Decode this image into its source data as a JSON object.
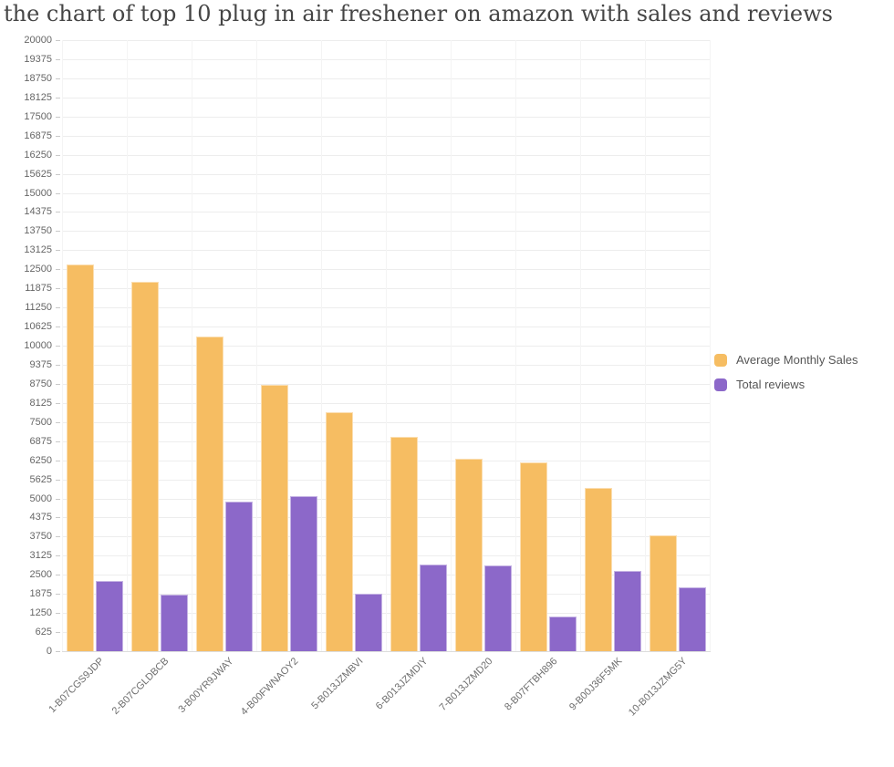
{
  "title": "the chart of top 10 plug in air freshener on amazon with sales and reviews",
  "chart_data": {
    "type": "bar",
    "title": "the chart of top 10 plug in air freshener on amazon with sales and reviews",
    "categories": [
      "1-B07CGS9JDP",
      "2-B07CGLDBCB",
      "3-B00YR9JWAY",
      "4-B00FWNAOY2",
      "5-B013JZMBVI",
      "6-B013JZMDIY",
      "7-B013JZMD20",
      "8-B07FTBH896",
      "9-B00J36F5MK",
      "10-B013JZMG5Y"
    ],
    "series": [
      {
        "name": "Average Monthly Sales",
        "color": "#F6BD62",
        "values": [
          12650,
          12080,
          10290,
          8730,
          7820,
          7020,
          6310,
          6190,
          5330,
          3800
        ]
      },
      {
        "name": "Total reviews",
        "color": "#8C68C9",
        "values": [
          2290,
          1845,
          4895,
          5090,
          1890,
          2840,
          2800,
          1140,
          2620,
          2080
        ]
      }
    ],
    "xlabel": "",
    "ylabel": "",
    "ylim": [
      0,
      20000
    ],
    "y_tick_step": 625,
    "y_ticks": [
      0,
      625,
      1250,
      1875,
      2500,
      3125,
      3750,
      4375,
      5000,
      5625,
      6250,
      6875,
      7500,
      8125,
      8750,
      9375,
      10000,
      10625,
      11250,
      11875,
      12500,
      13125,
      13750,
      14375,
      15000,
      15625,
      16250,
      16875,
      17500,
      18125,
      18750,
      19375,
      20000
    ],
    "grid": true,
    "legend_position": "right-middle",
    "bar_orientation": "vertical",
    "x_label_rotation_deg": 45
  }
}
